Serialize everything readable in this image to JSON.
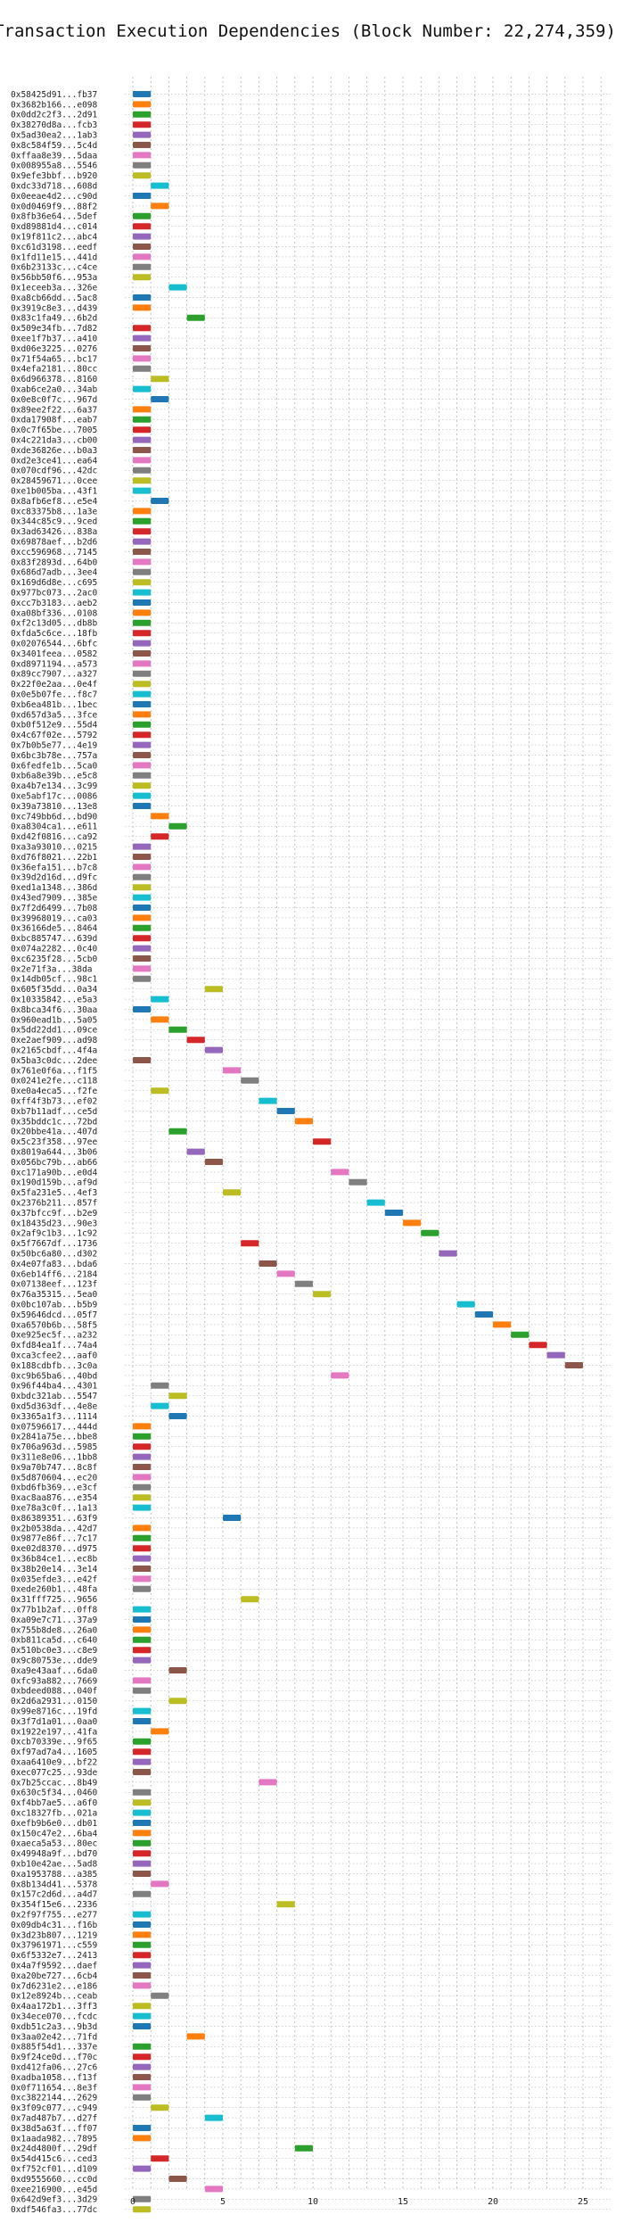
{
  "chart_data": {
    "type": "bar",
    "orientation": "horizontal",
    "title": "Transaction Execution Dependencies (Block Number: 22,274,359)",
    "xlabel": "",
    "ylabel": "",
    "xlim": [
      0,
      26
    ],
    "xticks": [
      0,
      5,
      10,
      15,
      20,
      25
    ],
    "grid": true,
    "legend": "none",
    "palette": [
      "#1f77b4",
      "#ff7f0e",
      "#2ca02c",
      "#d62728",
      "#9467bd",
      "#8c564b",
      "#e377c2",
      "#7f7f7f",
      "#bcbd22",
      "#17becf"
    ],
    "bars": [
      {
        "label": "0x58425d91...fb37",
        "start": 0,
        "end": 1
      },
      {
        "label": "0x3682b166...e098",
        "start": 0,
        "end": 1
      },
      {
        "label": "0x0dd2c2f3...2d91",
        "start": 0,
        "end": 1
      },
      {
        "label": "0x38270d8a...fcb3",
        "start": 0,
        "end": 1
      },
      {
        "label": "0x5ad30ea2...1ab3",
        "start": 0,
        "end": 1
      },
      {
        "label": "0x8c584f59...5c4d",
        "start": 0,
        "end": 1
      },
      {
        "label": "0xffaa8e39...5daa",
        "start": 0,
        "end": 1
      },
      {
        "label": "0x008955a8...5546",
        "start": 0,
        "end": 1
      },
      {
        "label": "0x9efe3bbf...b920",
        "start": 0,
        "end": 1
      },
      {
        "label": "0xdc33d718...608d",
        "start": 1,
        "end": 2
      },
      {
        "label": "0x0eeae4d2...c90d",
        "start": 0,
        "end": 1
      },
      {
        "label": "0x0d0469f9...88f2",
        "start": 1,
        "end": 2
      },
      {
        "label": "0x8fb36e64...5def",
        "start": 0,
        "end": 1
      },
      {
        "label": "0xd89881d4...c014",
        "start": 0,
        "end": 1
      },
      {
        "label": "0x19f811c2...abc4",
        "start": 0,
        "end": 1
      },
      {
        "label": "0xc61d3198...eedf",
        "start": 0,
        "end": 1
      },
      {
        "label": "0x1fd11e15...441d",
        "start": 0,
        "end": 1
      },
      {
        "label": "0x6b23133c...c4ce",
        "start": 0,
        "end": 1
      },
      {
        "label": "0x56bb50f6...953a",
        "start": 0,
        "end": 1
      },
      {
        "label": "0x1eceeb3a...326e",
        "start": 2,
        "end": 3
      },
      {
        "label": "0xa8cb66dd...5ac8",
        "start": 0,
        "end": 1
      },
      {
        "label": "0x3919c8e3...d439",
        "start": 0,
        "end": 1
      },
      {
        "label": "0x83c1fa49...6b2d",
        "start": 3,
        "end": 4
      },
      {
        "label": "0x509e34fb...7d82",
        "start": 0,
        "end": 1
      },
      {
        "label": "0xee1f7b37...a410",
        "start": 0,
        "end": 1
      },
      {
        "label": "0xd06e3225...0276",
        "start": 0,
        "end": 1
      },
      {
        "label": "0x71f54a65...bc17",
        "start": 0,
        "end": 1
      },
      {
        "label": "0x4efa2181...80cc",
        "start": 0,
        "end": 1
      },
      {
        "label": "0x6d966378...8160",
        "start": 1,
        "end": 2
      },
      {
        "label": "0xab6ce2a0...34ab",
        "start": 0,
        "end": 1
      },
      {
        "label": "0x0e8c0f7c...967d",
        "start": 1,
        "end": 2
      },
      {
        "label": "0x89ee2f22...6a37",
        "start": 0,
        "end": 1
      },
      {
        "label": "0xda17908f...eab7",
        "start": 0,
        "end": 1
      },
      {
        "label": "0x0c7f65be...7005",
        "start": 0,
        "end": 1
      },
      {
        "label": "0x4c221da3...cb00",
        "start": 0,
        "end": 1
      },
      {
        "label": "0xde36826e...b0a3",
        "start": 0,
        "end": 1
      },
      {
        "label": "0xd2e3ce41...ea64",
        "start": 0,
        "end": 1
      },
      {
        "label": "0x070cdf96...42dc",
        "start": 0,
        "end": 1
      },
      {
        "label": "0x28459671...0cee",
        "start": 0,
        "end": 1
      },
      {
        "label": "0xe1b005ba...43f1",
        "start": 0,
        "end": 1
      },
      {
        "label": "0x8afb6ef8...e5e4",
        "start": 1,
        "end": 2
      },
      {
        "label": "0xc83375b8...1a3e",
        "start": 0,
        "end": 1
      },
      {
        "label": "0x344c85c9...9ced",
        "start": 0,
        "end": 1
      },
      {
        "label": "0x3ad63426...838a",
        "start": 0,
        "end": 1
      },
      {
        "label": "0x69878aef...b2d6",
        "start": 0,
        "end": 1
      },
      {
        "label": "0xcc596968...7145",
        "start": 0,
        "end": 1
      },
      {
        "label": "0x83f2893d...64b0",
        "start": 0,
        "end": 1
      },
      {
        "label": "0x686d7adb...3ee4",
        "start": 0,
        "end": 1
      },
      {
        "label": "0x169d6d8e...c695",
        "start": 0,
        "end": 1
      },
      {
        "label": "0x977bc073...2ac0",
        "start": 0,
        "end": 1
      },
      {
        "label": "0xcc7b3183...aeb2",
        "start": 0,
        "end": 1
      },
      {
        "label": "0xa08bf336...0108",
        "start": 0,
        "end": 1
      },
      {
        "label": "0xf2c13d05...db8b",
        "start": 0,
        "end": 1
      },
      {
        "label": "0xfda5c6ce...18fb",
        "start": 0,
        "end": 1
      },
      {
        "label": "0x02076544...6bfc",
        "start": 0,
        "end": 1
      },
      {
        "label": "0x3401feea...0582",
        "start": 0,
        "end": 1
      },
      {
        "label": "0xd8971194...a573",
        "start": 0,
        "end": 1
      },
      {
        "label": "0x89cc7907...a327",
        "start": 0,
        "end": 1
      },
      {
        "label": "0x22f0e2aa...0e4f",
        "start": 0,
        "end": 1
      },
      {
        "label": "0x0e5b07fe...f8c7",
        "start": 0,
        "end": 1
      },
      {
        "label": "0xb6ea481b...1bec",
        "start": 0,
        "end": 1
      },
      {
        "label": "0xd657d3a5...3fce",
        "start": 0,
        "end": 1
      },
      {
        "label": "0xb0f512e9...55d4",
        "start": 0,
        "end": 1
      },
      {
        "label": "0x4c67f02e...5792",
        "start": 0,
        "end": 1
      },
      {
        "label": "0x7b0b5e77...4e19",
        "start": 0,
        "end": 1
      },
      {
        "label": "0x6bc3b78e...757a",
        "start": 0,
        "end": 1
      },
      {
        "label": "0x6fedfe1b...5ca0",
        "start": 0,
        "end": 1
      },
      {
        "label": "0xb6a8e39b...e5c8",
        "start": 0,
        "end": 1
      },
      {
        "label": "0xa4b7e134...3c99",
        "start": 0,
        "end": 1
      },
      {
        "label": "0xe5abf17c...0086",
        "start": 0,
        "end": 1
      },
      {
        "label": "0x39a73810...13e8",
        "start": 0,
        "end": 1
      },
      {
        "label": "0xc749bb6d...bd90",
        "start": 1,
        "end": 2
      },
      {
        "label": "0xa8304ca1...e611",
        "start": 2,
        "end": 3
      },
      {
        "label": "0xd42f0816...ca92",
        "start": 1,
        "end": 2
      },
      {
        "label": "0xa3a93010...0215",
        "start": 0,
        "end": 1
      },
      {
        "label": "0xd76f8021...22b1",
        "start": 0,
        "end": 1
      },
      {
        "label": "0x36efa151...b7c8",
        "start": 0,
        "end": 1
      },
      {
        "label": "0x39d2d16d...d9fc",
        "start": 0,
        "end": 1
      },
      {
        "label": "0xed1a1348...386d",
        "start": 0,
        "end": 1
      },
      {
        "label": "0x43ed7909...385e",
        "start": 0,
        "end": 1
      },
      {
        "label": "0x7f2d6499...7b08",
        "start": 0,
        "end": 1
      },
      {
        "label": "0x39968019...ca03",
        "start": 0,
        "end": 1
      },
      {
        "label": "0x36166de5...8464",
        "start": 0,
        "end": 1
      },
      {
        "label": "0xbc885747...639d",
        "start": 0,
        "end": 1
      },
      {
        "label": "0x074a2282...0c40",
        "start": 0,
        "end": 1
      },
      {
        "label": "0xc6235f28...5cb0",
        "start": 0,
        "end": 1
      },
      {
        "label": "0x2e71f3a...38da",
        "start": 0,
        "end": 1
      },
      {
        "label": "0x14db05cf...98c1",
        "start": 0,
        "end": 1
      },
      {
        "label": "0x605f35dd...0a34",
        "start": 4,
        "end": 5
      },
      {
        "label": "0x10335842...e5a3",
        "start": 1,
        "end": 2
      },
      {
        "label": "0x8bca34f6...30aa",
        "start": 0,
        "end": 1
      },
      {
        "label": "0x960ead1b...5a05",
        "start": 1,
        "end": 2
      },
      {
        "label": "0x5dd22dd1...09ce",
        "start": 2,
        "end": 3
      },
      {
        "label": "0xe2aef909...ad98",
        "start": 3,
        "end": 4
      },
      {
        "label": "0x2165cbdf...4f4a",
        "start": 4,
        "end": 5
      },
      {
        "label": "0x5ba3c0dc...2dee",
        "start": 0,
        "end": 1
      },
      {
        "label": "0x761e0f6a...f1f5",
        "start": 5,
        "end": 6
      },
      {
        "label": "0x0241e2fe...c118",
        "start": 6,
        "end": 7
      },
      {
        "label": "0xe0a4eca5...f2fe",
        "start": 1,
        "end": 2
      },
      {
        "label": "0xff4f3b73...ef02",
        "start": 7,
        "end": 8
      },
      {
        "label": "0xb7b11adf...ce5d",
        "start": 8,
        "end": 9
      },
      {
        "label": "0x35bddc1c...72bd",
        "start": 9,
        "end": 10
      },
      {
        "label": "0x20bbe41a...407d",
        "start": 2,
        "end": 3
      },
      {
        "label": "0x5c23f358...97ee",
        "start": 10,
        "end": 11
      },
      {
        "label": "0x8019a644...3b06",
        "start": 3,
        "end": 4
      },
      {
        "label": "0x056bc79b...ab66",
        "start": 4,
        "end": 5
      },
      {
        "label": "0xc171a90b...e0d4",
        "start": 11,
        "end": 12
      },
      {
        "label": "0x190d159b...af9d",
        "start": 12,
        "end": 13
      },
      {
        "label": "0x5fa231e5...4ef3",
        "start": 5,
        "end": 6
      },
      {
        "label": "0x2376b211...857f",
        "start": 13,
        "end": 14
      },
      {
        "label": "0x37bfcc9f...b2e9",
        "start": 14,
        "end": 15
      },
      {
        "label": "0x18435d23...90e3",
        "start": 15,
        "end": 16
      },
      {
        "label": "0x2af9c1b3...1c92",
        "start": 16,
        "end": 17
      },
      {
        "label": "0x5f7667df...1736",
        "start": 6,
        "end": 7
      },
      {
        "label": "0x50bc6a80...d302",
        "start": 17,
        "end": 18
      },
      {
        "label": "0x4e07fa83...bda6",
        "start": 7,
        "end": 8
      },
      {
        "label": "0x6eb14ff6...2184",
        "start": 8,
        "end": 9
      },
      {
        "label": "0x07138eef...123f",
        "start": 9,
        "end": 10
      },
      {
        "label": "0x76a35315...5ea0",
        "start": 10,
        "end": 11
      },
      {
        "label": "0x0bc107ab...b5b9",
        "start": 18,
        "end": 19
      },
      {
        "label": "0x59646dcd...05f7",
        "start": 19,
        "end": 20
      },
      {
        "label": "0xa6570b6b...58f5",
        "start": 20,
        "end": 21
      },
      {
        "label": "0xe925ec5f...a232",
        "start": 21,
        "end": 22
      },
      {
        "label": "0xfd84ea1f...74a4",
        "start": 22,
        "end": 23
      },
      {
        "label": "0xca3cfee2...aaf0",
        "start": 23,
        "end": 24
      },
      {
        "label": "0x188cdbfb...3c0a",
        "start": 24,
        "end": 25
      },
      {
        "label": "0xc9b65ba6...40bd",
        "start": 11,
        "end": 12
      },
      {
        "label": "0x96f44ba4...4301",
        "start": 1,
        "end": 2
      },
      {
        "label": "0xbdc321ab...5547",
        "start": 2,
        "end": 3
      },
      {
        "label": "0xd5d363df...4e8e",
        "start": 1,
        "end": 2
      },
      {
        "label": "0x3365a1f3...1114",
        "start": 2,
        "end": 3
      },
      {
        "label": "0x07596617...444d",
        "start": 0,
        "end": 1
      },
      {
        "label": "0x2841a75e...bbe8",
        "start": 0,
        "end": 1
      },
      {
        "label": "0x706a963d...5985",
        "start": 0,
        "end": 1
      },
      {
        "label": "0x311e8e06...1bb8",
        "start": 0,
        "end": 1
      },
      {
        "label": "0x9a70b747...8c8f",
        "start": 0,
        "end": 1
      },
      {
        "label": "0x5d870604...ec20",
        "start": 0,
        "end": 1
      },
      {
        "label": "0xbd6fb369...e3cf",
        "start": 0,
        "end": 1
      },
      {
        "label": "0xac8aa876...e354",
        "start": 0,
        "end": 1
      },
      {
        "label": "0xe78a3c0f...1a13",
        "start": 0,
        "end": 1
      },
      {
        "label": "0x86389351...63f9",
        "start": 5,
        "end": 6
      },
      {
        "label": "0x2b0538da...42d7",
        "start": 0,
        "end": 1
      },
      {
        "label": "0x9877e86f...7c17",
        "start": 0,
        "end": 1
      },
      {
        "label": "0xe02d8370...d975",
        "start": 0,
        "end": 1
      },
      {
        "label": "0x36b84ce1...ec8b",
        "start": 0,
        "end": 1
      },
      {
        "label": "0x38b20e14...3e14",
        "start": 0,
        "end": 1
      },
      {
        "label": "0x035efde3...e42f",
        "start": 0,
        "end": 1
      },
      {
        "label": "0xede260b1...48fa",
        "start": 0,
        "end": 1
      },
      {
        "label": "0x31fff725...9656",
        "start": 6,
        "end": 7
      },
      {
        "label": "0x77b1b2af...0ff8",
        "start": 0,
        "end": 1
      },
      {
        "label": "0xa09e7c71...37a9",
        "start": 0,
        "end": 1
      },
      {
        "label": "0x755b8de8...26a0",
        "start": 0,
        "end": 1
      },
      {
        "label": "0xb811ca5d...c640",
        "start": 0,
        "end": 1
      },
      {
        "label": "0x510bc0e3...c8e9",
        "start": 0,
        "end": 1
      },
      {
        "label": "0x9c80753e...dde9",
        "start": 0,
        "end": 1
      },
      {
        "label": "0xa9e43aaf...6da0",
        "start": 2,
        "end": 3
      },
      {
        "label": "0xfc93a882...7669",
        "start": 0,
        "end": 1
      },
      {
        "label": "0xbdeed088...040f",
        "start": 0,
        "end": 1
      },
      {
        "label": "0x2d6a2931...0150",
        "start": 2,
        "end": 3
      },
      {
        "label": "0x99e8716c...19fd",
        "start": 0,
        "end": 1
      },
      {
        "label": "0x3f7d1a01...0aa0",
        "start": 0,
        "end": 1
      },
      {
        "label": "0x1922e197...41fa",
        "start": 1,
        "end": 2
      },
      {
        "label": "0xcb70339e...9f65",
        "start": 0,
        "end": 1
      },
      {
        "label": "0xf97ad7a4...1605",
        "start": 0,
        "end": 1
      },
      {
        "label": "0xaa6410e9...bf22",
        "start": 0,
        "end": 1
      },
      {
        "label": "0xec077c25...93de",
        "start": 0,
        "end": 1
      },
      {
        "label": "0x7b25ccac...8b49",
        "start": 7,
        "end": 8
      },
      {
        "label": "0x630c5f34...0460",
        "start": 0,
        "end": 1
      },
      {
        "label": "0xf4bb7ae5...a6f0",
        "start": 0,
        "end": 1
      },
      {
        "label": "0xc18327fb...021a",
        "start": 0,
        "end": 1
      },
      {
        "label": "0xefb9b6e0...db01",
        "start": 0,
        "end": 1
      },
      {
        "label": "0x150c47e2...6ba4",
        "start": 0,
        "end": 1
      },
      {
        "label": "0xaeca5a53...80ec",
        "start": 0,
        "end": 1
      },
      {
        "label": "0x49948a9f...bd70",
        "start": 0,
        "end": 1
      },
      {
        "label": "0xb10e42ae...5ad8",
        "start": 0,
        "end": 1
      },
      {
        "label": "0xa1953788...a385",
        "start": 0,
        "end": 1
      },
      {
        "label": "0x8b134d41...5378",
        "start": 1,
        "end": 2
      },
      {
        "label": "0x157c2d6d...a4d7",
        "start": 0,
        "end": 1
      },
      {
        "label": "0x354f15e6...2336",
        "start": 8,
        "end": 9
      },
      {
        "label": "0x2f97f755...e277",
        "start": 0,
        "end": 1
      },
      {
        "label": "0x09db4c31...f16b",
        "start": 0,
        "end": 1
      },
      {
        "label": "0x3d23b807...1219",
        "start": 0,
        "end": 1
      },
      {
        "label": "0x37961971...c559",
        "start": 0,
        "end": 1
      },
      {
        "label": "0x6f5332e7...2413",
        "start": 0,
        "end": 1
      },
      {
        "label": "0x4a7f9592...daef",
        "start": 0,
        "end": 1
      },
      {
        "label": "0xa20be727...6cb4",
        "start": 0,
        "end": 1
      },
      {
        "label": "0x7d6231e2...e186",
        "start": 0,
        "end": 1
      },
      {
        "label": "0x12e8924b...ceab",
        "start": 1,
        "end": 2
      },
      {
        "label": "0x4aa172b1...3ff3",
        "start": 0,
        "end": 1
      },
      {
        "label": "0x34ece070...fcdc",
        "start": 0,
        "end": 1
      },
      {
        "label": "0xdb51c2a3...9b3d",
        "start": 0,
        "end": 1
      },
      {
        "label": "0x3aa02e42...71fd",
        "start": 3,
        "end": 4
      },
      {
        "label": "0x885f54d1...337e",
        "start": 0,
        "end": 1
      },
      {
        "label": "0x9f24ce0d...f70c",
        "start": 0,
        "end": 1
      },
      {
        "label": "0xd412fa06...27c6",
        "start": 0,
        "end": 1
      },
      {
        "label": "0xadba1058...f13f",
        "start": 0,
        "end": 1
      },
      {
        "label": "0x0f711654...8e3f",
        "start": 0,
        "end": 1
      },
      {
        "label": "0xc3822144...2629",
        "start": 0,
        "end": 1
      },
      {
        "label": "0x3f09c077...c949",
        "start": 1,
        "end": 2
      },
      {
        "label": "0x7ad487b7...d27f",
        "start": 4,
        "end": 5
      },
      {
        "label": "0x38d5a63f...ff07",
        "start": 0,
        "end": 1
      },
      {
        "label": "0x1aada982...7895",
        "start": 0,
        "end": 1
      },
      {
        "label": "0x24d4800f...29df",
        "start": 9,
        "end": 10
      },
      {
        "label": "0x54d415c6...ced3",
        "start": 1,
        "end": 2
      },
      {
        "label": "0xf752cf01...d109",
        "start": 0,
        "end": 1
      },
      {
        "label": "0xd9555660...cc0d",
        "start": 2,
        "end": 3
      },
      {
        "label": "0xee216900...e45d",
        "start": 4,
        "end": 5
      },
      {
        "label": "0x642d9ef3...3d29",
        "start": 0,
        "end": 1
      },
      {
        "label": "0xdf546fa3...77dc",
        "start": 0,
        "end": 1
      }
    ]
  }
}
